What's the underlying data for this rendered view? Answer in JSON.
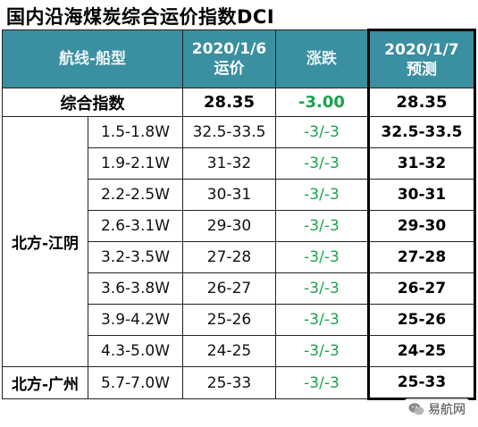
{
  "title": "国内沿海煤炭综合运价指数DCI",
  "header": {
    "route": "航线-船型",
    "price": "2020/1/6\n运价",
    "price_line1": "2020/1/6",
    "price_line2": "运价",
    "change": "涨跌",
    "forecast_line1": "2020/1/7",
    "forecast_line2": "预测"
  },
  "summary": {
    "label": "综合指数",
    "price": "28.35",
    "change": "-3.00",
    "forecast": "28.35"
  },
  "regions": [
    {
      "name": "北方-江阴",
      "rows": [
        {
          "ship": "1.5-1.8W",
          "price": "32.5-33.5",
          "change": "-3/-3",
          "forecast": "32.5-33.5"
        },
        {
          "ship": "1.9-2.1W",
          "price": "31-32",
          "change": "-3/-3",
          "forecast": "31-32"
        },
        {
          "ship": "2.2-2.5W",
          "price": "30-31",
          "change": "-3/-3",
          "forecast": "30-31"
        },
        {
          "ship": "2.6-3.1W",
          "price": "29-30",
          "change": "-3/-3",
          "forecast": "29-30"
        },
        {
          "ship": "3.2-3.5W",
          "price": "27-28",
          "change": "-3/-3",
          "forecast": "27-28"
        },
        {
          "ship": "3.6-3.8W",
          "price": "26-27",
          "change": "-3/-3",
          "forecast": "26-27"
        },
        {
          "ship": "3.9-4.2W",
          "price": "25-26",
          "change": "-3/-3",
          "forecast": "25-26"
        },
        {
          "ship": "4.3-5.0W",
          "price": "24-25",
          "change": "-3/-3",
          "forecast": "24-25"
        }
      ]
    },
    {
      "name": "北方-广州",
      "rows": [
        {
          "ship": "5.7-7.0W",
          "price": "25-33",
          "change": "-3/-3",
          "forecast": "25-33"
        }
      ]
    }
  ],
  "brand": {
    "text": "易航网",
    "icon": "wechat-icon"
  },
  "colors": {
    "header_bg": "#3a8fa1",
    "change_green": "#1aa34a"
  }
}
